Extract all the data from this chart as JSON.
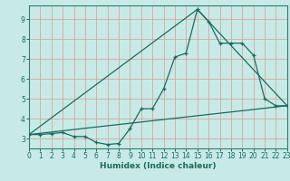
{
  "xlabel": "Humidex (Indice chaleur)",
  "bg_color": "#c8eae6",
  "line_color": "#1a6b5e",
  "grid_color": "#d4a8a0",
  "axis_color": "#2e7d6e",
  "xmin": 0,
  "xmax": 23,
  "ymin": 2.5,
  "ymax": 9.7,
  "yticks": [
    3,
    4,
    5,
    6,
    7,
    8,
    9
  ],
  "xticks": [
    0,
    1,
    2,
    3,
    4,
    5,
    6,
    7,
    8,
    9,
    10,
    11,
    12,
    13,
    14,
    15,
    16,
    17,
    18,
    19,
    20,
    21,
    22,
    23
  ],
  "line1_x": [
    0,
    1,
    2,
    3,
    4,
    5,
    6,
    7,
    8,
    9,
    10,
    11,
    12,
    13,
    14,
    15,
    16,
    17,
    18,
    19,
    20,
    21,
    22,
    23
  ],
  "line1_y": [
    3.2,
    3.2,
    3.25,
    3.3,
    3.1,
    3.1,
    2.8,
    2.7,
    2.75,
    3.5,
    4.5,
    4.5,
    5.5,
    7.1,
    7.3,
    9.5,
    8.9,
    7.8,
    7.8,
    7.8,
    7.2,
    5.0,
    4.65,
    4.65
  ],
  "line2_x": [
    0,
    23
  ],
  "line2_y": [
    3.2,
    4.65
  ],
  "line3_x": [
    0,
    15,
    23
  ],
  "line3_y": [
    3.2,
    9.5,
    4.65
  ]
}
